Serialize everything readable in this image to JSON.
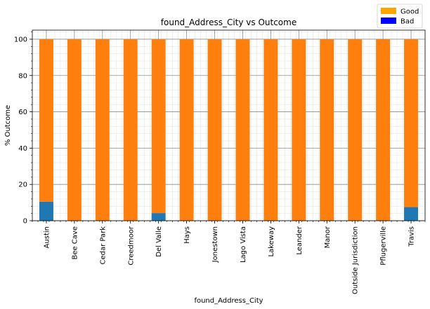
{
  "chart_data": {
    "type": "bar",
    "stacked": true,
    "title": "found_Address_City vs Outcome",
    "xlabel": "found_Address_City",
    "ylabel": "% Outcome",
    "ylim": [
      0,
      105
    ],
    "yticks": [
      0,
      20,
      40,
      60,
      80,
      100
    ],
    "grid": true,
    "legend_position": "upper right outside",
    "categories": [
      "Austin",
      "Bee Cave",
      "Cedar Park",
      "Creedmoor",
      "Del Valle",
      "Hays",
      "Jonestown",
      "Lago Vista",
      "Lakeway",
      "Leander",
      "Manor",
      "Outside Jurisdiction",
      "Pflugerville",
      "Travis"
    ],
    "series": [
      {
        "name": "Bad",
        "color": "#1f77b4",
        "values": [
          10.5,
          0,
          0,
          0,
          4.2,
          0,
          0,
          0,
          0,
          0,
          0,
          0,
          0,
          7.5
        ]
      },
      {
        "name": "Good",
        "color": "#ff7f0e",
        "values": [
          89.5,
          100,
          100,
          100,
          95.8,
          100,
          100,
          100,
          100,
          100,
          100,
          100,
          100,
          92.5
        ]
      }
    ],
    "legend": [
      {
        "label": "Good",
        "color": "#ffa500"
      },
      {
        "label": "Bad",
        "color": "#0000ff"
      }
    ]
  }
}
